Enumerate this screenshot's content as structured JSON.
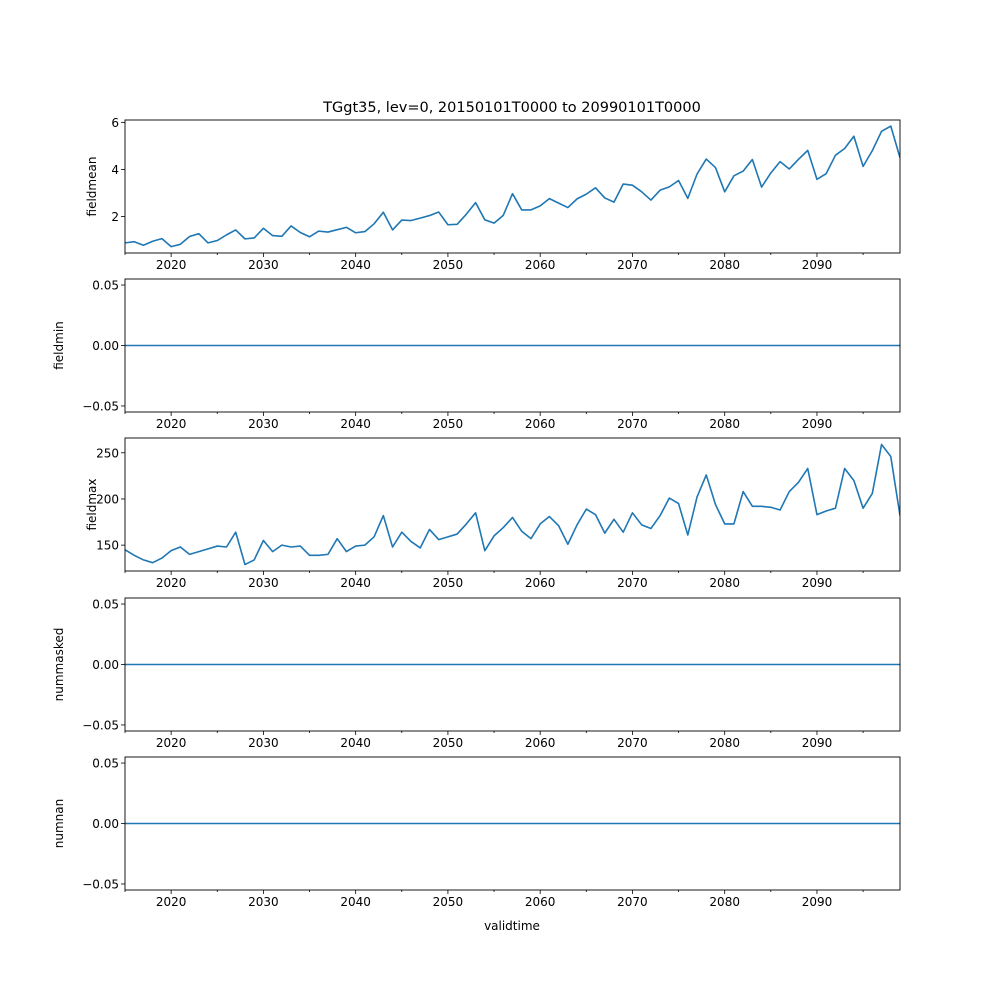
{
  "title": "TGgt35, lev=0, 20150101T0000 to 20990101T0000",
  "xlabel": "validtime",
  "line_color": "#1f77b4",
  "chart_data": [
    {
      "type": "line",
      "name": "fieldmean",
      "ylabel": "fieldmean",
      "xlim": [
        2015,
        2099
      ],
      "ylim": [
        0.45,
        6.1
      ],
      "x_ticks": [
        2020,
        2030,
        2040,
        2050,
        2060,
        2070,
        2080,
        2090
      ],
      "y_ticks": [
        2,
        4,
        6
      ],
      "y_tick_labels": [
        "2",
        "4",
        "6"
      ],
      "x": [
        2015,
        2016,
        2017,
        2018,
        2019,
        2020,
        2021,
        2022,
        2023,
        2024,
        2025,
        2026,
        2027,
        2028,
        2029,
        2030,
        2031,
        2032,
        2033,
        2034,
        2035,
        2036,
        2037,
        2038,
        2039,
        2040,
        2041,
        2042,
        2043,
        2044,
        2045,
        2046,
        2047,
        2048,
        2049,
        2050,
        2051,
        2052,
        2053,
        2054,
        2055,
        2056,
        2057,
        2058,
        2059,
        2060,
        2061,
        2062,
        2063,
        2064,
        2065,
        2066,
        2067,
        2068,
        2069,
        2070,
        2071,
        2072,
        2073,
        2074,
        2075,
        2076,
        2077,
        2078,
        2079,
        2080,
        2081,
        2082,
        2083,
        2084,
        2085,
        2086,
        2087,
        2088,
        2089,
        2090,
        2091,
        2092,
        2093,
        2094,
        2095,
        2096,
        2097,
        2098,
        2099
      ],
      "values": [
        0.88,
        0.93,
        0.78,
        0.95,
        1.06,
        0.72,
        0.82,
        1.15,
        1.27,
        0.88,
        0.98,
        1.22,
        1.43,
        1.05,
        1.09,
        1.5,
        1.19,
        1.16,
        1.6,
        1.32,
        1.14,
        1.38,
        1.34,
        1.44,
        1.54,
        1.31,
        1.36,
        1.69,
        2.18,
        1.43,
        1.85,
        1.83,
        1.93,
        2.04,
        2.19,
        1.65,
        1.67,
        2.1,
        2.59,
        1.86,
        1.72,
        2.05,
        2.97,
        2.28,
        2.28,
        2.45,
        2.76,
        2.57,
        2.38,
        2.75,
        2.95,
        3.22,
        2.79,
        2.61,
        3.38,
        3.33,
        3.05,
        2.7,
        3.12,
        3.26,
        3.53,
        2.77,
        3.8,
        4.44,
        4.08,
        3.05,
        3.73,
        3.93,
        4.42,
        3.25,
        3.85,
        4.33,
        4.02,
        4.43,
        4.81,
        3.58,
        3.82,
        4.6,
        4.89,
        5.41,
        4.13,
        4.8,
        5.62,
        5.84,
        4.5
      ]
    },
    {
      "type": "line",
      "name": "fieldmin",
      "ylabel": "fieldmin",
      "xlim": [
        2015,
        2099
      ],
      "ylim": [
        -0.055,
        0.055
      ],
      "x_ticks": [
        2020,
        2030,
        2040,
        2050,
        2060,
        2070,
        2080,
        2090
      ],
      "y_ticks": [
        -0.05,
        0.0,
        0.05
      ],
      "y_tick_labels": [
        "−0.05",
        "0.00",
        "0.05"
      ],
      "x": [
        2015,
        2099
      ],
      "values": [
        0,
        0
      ]
    },
    {
      "type": "line",
      "name": "fieldmax",
      "ylabel": "fieldmax",
      "xlim": [
        2015,
        2099
      ],
      "ylim": [
        122,
        266
      ],
      "x_ticks": [
        2020,
        2030,
        2040,
        2050,
        2060,
        2070,
        2080,
        2090
      ],
      "y_ticks": [
        150,
        200,
        250
      ],
      "y_tick_labels": [
        "150",
        "200",
        "250"
      ],
      "x": [
        2015,
        2016,
        2017,
        2018,
        2019,
        2020,
        2021,
        2022,
        2023,
        2024,
        2025,
        2026,
        2027,
        2028,
        2029,
        2030,
        2031,
        2032,
        2033,
        2034,
        2035,
        2036,
        2037,
        2038,
        2039,
        2040,
        2041,
        2042,
        2043,
        2044,
        2045,
        2046,
        2047,
        2048,
        2049,
        2050,
        2051,
        2052,
        2053,
        2054,
        2055,
        2056,
        2057,
        2058,
        2059,
        2060,
        2061,
        2062,
        2063,
        2064,
        2065,
        2066,
        2067,
        2068,
        2069,
        2070,
        2071,
        2072,
        2073,
        2074,
        2075,
        2076,
        2077,
        2078,
        2079,
        2080,
        2081,
        2082,
        2083,
        2084,
        2085,
        2086,
        2087,
        2088,
        2089,
        2090,
        2091,
        2092,
        2093,
        2094,
        2095,
        2096,
        2097,
        2098,
        2099
      ],
      "values": [
        145,
        139,
        134,
        131,
        136,
        144,
        148,
        140,
        143,
        146,
        149,
        148,
        164,
        129,
        134,
        155,
        143,
        150,
        148,
        149,
        139,
        139,
        140,
        157,
        143,
        149,
        150,
        159,
        182,
        148,
        164,
        154,
        147,
        167,
        156,
        159,
        162,
        173,
        185,
        144,
        160,
        169,
        180,
        165,
        157,
        173,
        181,
        171,
        151,
        172,
        189,
        183,
        163,
        178,
        164,
        185,
        172,
        168,
        182,
        201,
        195,
        161,
        202,
        226,
        194,
        173,
        173,
        208,
        192,
        192,
        191,
        188,
        208,
        218,
        233,
        183,
        187,
        190,
        233,
        220,
        190,
        206,
        259,
        246,
        182
      ]
    },
    {
      "type": "line",
      "name": "nummasked",
      "ylabel": "nummasked",
      "xlim": [
        2015,
        2099
      ],
      "ylim": [
        -0.055,
        0.055
      ],
      "x_ticks": [
        2020,
        2030,
        2040,
        2050,
        2060,
        2070,
        2080,
        2090
      ],
      "y_ticks": [
        -0.05,
        0.0,
        0.05
      ],
      "y_tick_labels": [
        "−0.05",
        "0.00",
        "0.05"
      ],
      "x": [
        2015,
        2099
      ],
      "values": [
        0,
        0
      ]
    },
    {
      "type": "line",
      "name": "numnan",
      "ylabel": "numnan",
      "xlim": [
        2015,
        2099
      ],
      "ylim": [
        -0.055,
        0.055
      ],
      "x_ticks": [
        2020,
        2030,
        2040,
        2050,
        2060,
        2070,
        2080,
        2090
      ],
      "y_ticks": [
        -0.05,
        0.0,
        0.05
      ],
      "y_tick_labels": [
        "−0.05",
        "0.00",
        "0.05"
      ],
      "x": [
        2015,
        2099
      ],
      "values": [
        0,
        0
      ]
    }
  ]
}
